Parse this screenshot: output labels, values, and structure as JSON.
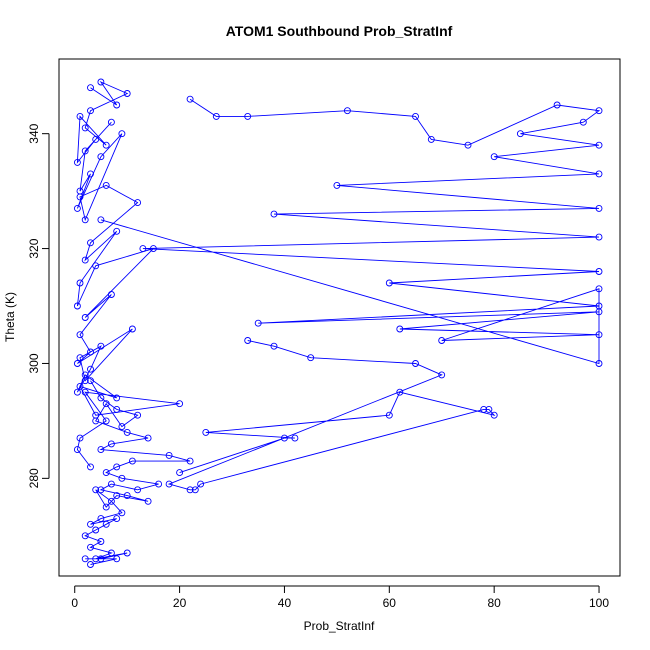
{
  "chart_data": {
    "type": "line",
    "title": "ATOM1 Southbound Prob_StratInf",
    "xlabel": "Prob_StratInf",
    "ylabel": "Theta (K)",
    "xlim": [
      -3,
      104
    ],
    "ylim": [
      263,
      353
    ],
    "x_ticks": [
      0,
      20,
      40,
      60,
      80,
      100
    ],
    "y_ticks": [
      280,
      300,
      320,
      340
    ],
    "grid": false,
    "legend": "none",
    "marker": "open-circle",
    "series_color": "#0000ff",
    "series": [
      {
        "x": [
          3,
          8,
          5,
          10,
          3,
          2,
          6,
          1,
          0.5,
          4,
          7,
          2,
          1,
          3,
          0.5,
          5,
          9,
          2,
          1,
          6,
          12,
          3,
          2,
          8,
          1,
          0.5,
          4,
          15,
          2,
          7,
          1,
          3,
          0.5,
          11,
          2,
          1,
          5,
          3,
          0.5,
          2,
          8,
          1,
          4,
          20,
          2,
          6,
          1,
          0.5,
          3
        ],
        "y": [
          348,
          345,
          349,
          347,
          344,
          341,
          338,
          343,
          335,
          339,
          342,
          337,
          330,
          333,
          327,
          336,
          340,
          325,
          329,
          331,
          328,
          321,
          318,
          323,
          314,
          310,
          317,
          320,
          308,
          312,
          305,
          302,
          300,
          306,
          297,
          301,
          303,
          299,
          295,
          298,
          294,
          296,
          291,
          293,
          295,
          290,
          287,
          285,
          282
        ]
      },
      {
        "x": [
          22,
          27,
          33,
          52,
          65,
          68,
          75,
          92,
          100,
          97,
          85,
          100,
          80,
          100,
          50,
          100,
          38,
          100,
          13,
          100,
          60,
          100,
          35,
          100,
          62,
          100,
          70,
          100,
          100,
          5
        ],
        "y": [
          346,
          343,
          343,
          344,
          343,
          339,
          338,
          345,
          344,
          342,
          340,
          338,
          336,
          333,
          331,
          327,
          326,
          322,
          320,
          316,
          314,
          310,
          307,
          309,
          306,
          305,
          304,
          313,
          300,
          325
        ]
      },
      {
        "x": [
          3,
          5,
          8,
          12,
          9,
          6,
          4,
          10,
          14,
          7,
          5,
          18,
          22,
          11,
          8,
          6,
          9,
          16,
          12,
          7,
          5,
          10,
          14,
          8,
          6,
          4,
          7,
          9,
          5,
          3,
          8,
          6,
          4,
          2,
          5,
          3,
          7,
          4,
          10,
          5,
          2,
          8,
          3
        ],
        "y": [
          297,
          294,
          292,
          291,
          289,
          293,
          290,
          288,
          287,
          286,
          285,
          284,
          283,
          283,
          282,
          281,
          280,
          279,
          278,
          279,
          278,
          277,
          276,
          277,
          275,
          278,
          276,
          274,
          273,
          272,
          273,
          272,
          271,
          270,
          269,
          268,
          267,
          266,
          267,
          266,
          266,
          266,
          265
        ]
      },
      {
        "x": [
          20,
          40,
          42,
          25,
          60,
          62,
          80,
          79,
          78,
          24,
          23,
          22,
          18,
          70,
          65,
          45,
          38,
          33
        ],
        "y": [
          281,
          287,
          287,
          288,
          291,
          295,
          291,
          292,
          292,
          279,
          278,
          278,
          279,
          298,
          300,
          301,
          303,
          304
        ]
      }
    ]
  }
}
